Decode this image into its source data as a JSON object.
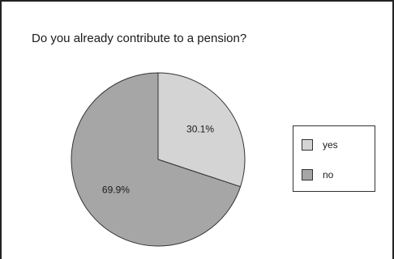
{
  "chart_data": {
    "type": "pie",
    "title": "Do you already contribute to a pension?",
    "categories": [
      "yes",
      "no"
    ],
    "values": [
      30.1,
      69.9
    ],
    "value_labels": [
      "30.1%",
      "69.9%"
    ],
    "colors": [
      "#d4d4d4",
      "#a6a6a6"
    ],
    "stroke_color": "#333333",
    "legend_position": "right"
  }
}
